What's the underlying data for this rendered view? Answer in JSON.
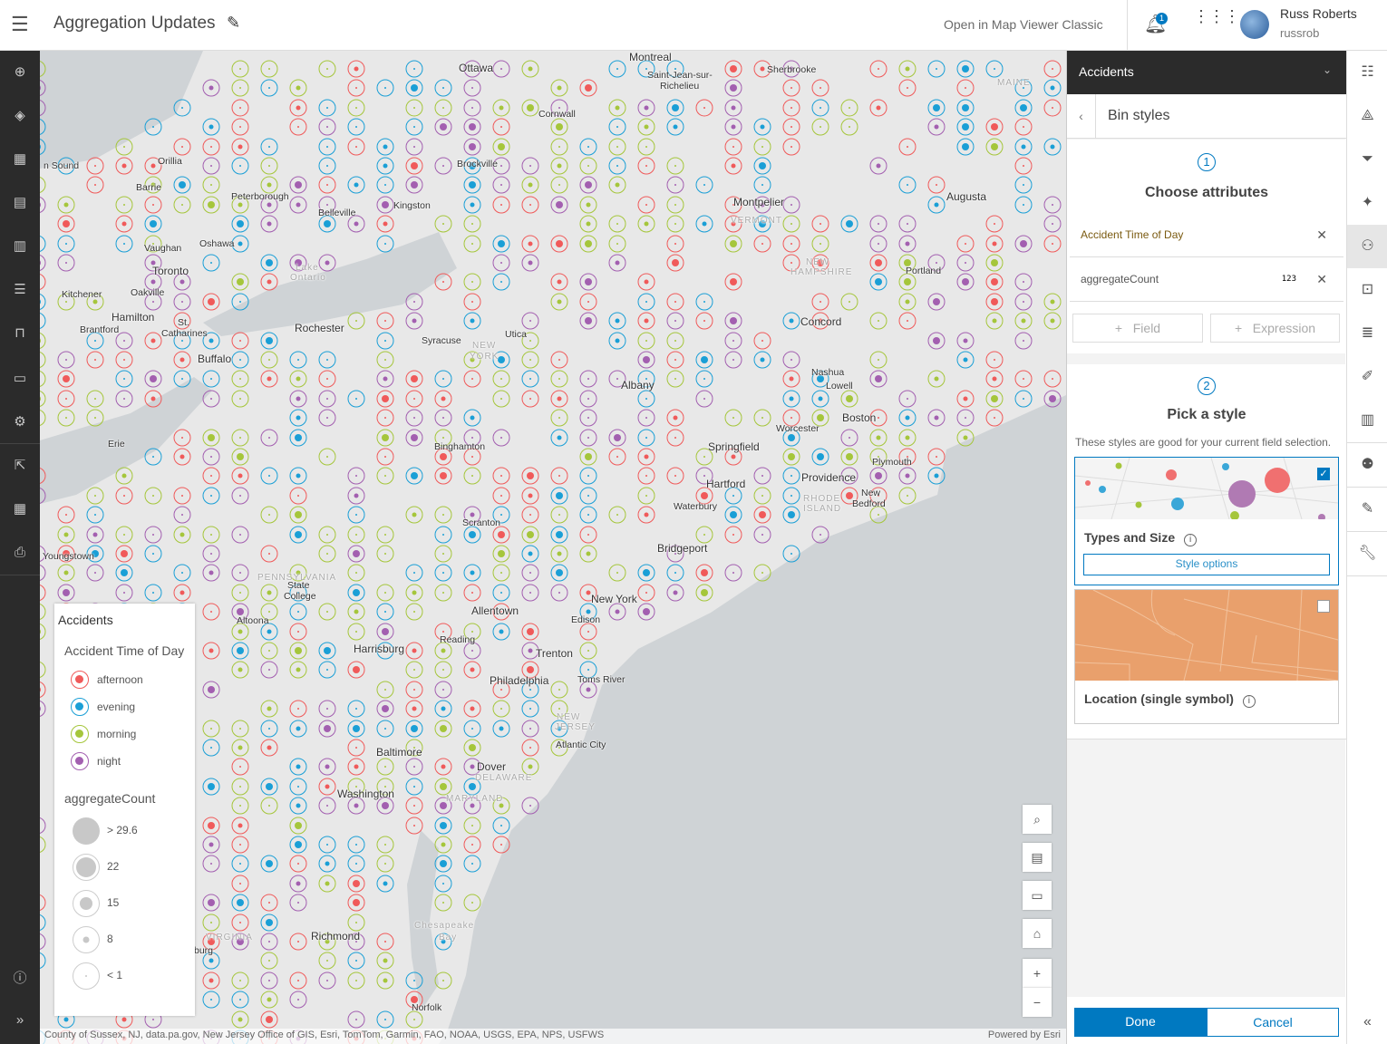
{
  "header": {
    "title": "Aggregation Updates",
    "classic_link": "Open in Map Viewer Classic",
    "notification_count": "1",
    "user_name": "Russ Roberts",
    "user_id": "russrob"
  },
  "left_nav": {
    "icons": [
      "add-icon",
      "layers-icon",
      "table-icon",
      "basemap-icon",
      "charts-icon",
      "legend-icon",
      "bookmarks-icon",
      "media-icon",
      "settings-icon",
      "share-icon",
      "apps-icon",
      "print-icon",
      "info-icon",
      "expand-icon"
    ]
  },
  "map": {
    "labels": [
      {
        "t": "Ottawa",
        "c": "big"
      },
      {
        "t": "Montreal",
        "c": "big"
      },
      {
        "t": "Saint-Jean-sur-",
        "c": ""
      },
      {
        "t": "Richelieu",
        "c": ""
      },
      {
        "t": "Sherbrooke",
        "c": ""
      },
      {
        "t": "MAINE",
        "c": "st"
      },
      {
        "t": "Cornwall",
        "c": ""
      },
      {
        "t": "Orillia",
        "c": ""
      },
      {
        "t": "n Sound",
        "c": ""
      },
      {
        "t": "Barrie",
        "c": ""
      },
      {
        "t": "Brockville",
        "c": ""
      },
      {
        "t": "Peterborough",
        "c": ""
      },
      {
        "t": "Belleville",
        "c": ""
      },
      {
        "t": "Kingston",
        "c": ""
      },
      {
        "t": "Montpelier",
        "c": "big"
      },
      {
        "t": "VERMONT",
        "c": "st"
      },
      {
        "t": "Augusta",
        "c": "big"
      },
      {
        "t": "Vaughan",
        "c": ""
      },
      {
        "t": "Oshawa",
        "c": ""
      },
      {
        "t": "Toronto",
        "c": "big"
      },
      {
        "t": "Lake",
        "c": "st"
      },
      {
        "t": "Ontario",
        "c": "st"
      },
      {
        "t": "NEW",
        "c": "st"
      },
      {
        "t": "HAMPSHIRE",
        "c": "st"
      },
      {
        "t": "Portland",
        "c": ""
      },
      {
        "t": "Kitchener",
        "c": ""
      },
      {
        "t": "Oakville",
        "c": ""
      },
      {
        "t": "Hamilton",
        "c": "big"
      },
      {
        "t": "St.",
        "c": ""
      },
      {
        "t": "Catharines",
        "c": ""
      },
      {
        "t": "Brantford",
        "c": ""
      },
      {
        "t": "Rochester",
        "c": "big"
      },
      {
        "t": "Syracuse",
        "c": ""
      },
      {
        "t": "Utica",
        "c": ""
      },
      {
        "t": "NEW",
        "c": "st"
      },
      {
        "t": "YORK",
        "c": "st"
      },
      {
        "t": "Concord",
        "c": "big"
      },
      {
        "t": "Buffalo",
        "c": "big"
      },
      {
        "t": "Nashua",
        "c": ""
      },
      {
        "t": "Lowell",
        "c": ""
      },
      {
        "t": "Albany",
        "c": "big"
      },
      {
        "t": "Boston",
        "c": "big"
      },
      {
        "t": "Worcester",
        "c": ""
      },
      {
        "t": "Erie",
        "c": ""
      },
      {
        "t": "Binghamton",
        "c": ""
      },
      {
        "t": "Springfield",
        "c": "big"
      },
      {
        "t": "Plymouth",
        "c": ""
      },
      {
        "t": "Providence",
        "c": "big"
      },
      {
        "t": "Hartford",
        "c": "big"
      },
      {
        "t": "RHODE",
        "c": "st"
      },
      {
        "t": "ISLAND",
        "c": "st"
      },
      {
        "t": "New",
        "c": ""
      },
      {
        "t": "Bedford",
        "c": ""
      },
      {
        "t": "Waterbury",
        "c": ""
      },
      {
        "t": "Scranton",
        "c": ""
      },
      {
        "t": "Youngstown",
        "c": ""
      },
      {
        "t": "Bridgeport",
        "c": "big"
      },
      {
        "t": "PENNSYLVANIA",
        "c": "st"
      },
      {
        "t": "State",
        "c": ""
      },
      {
        "t": "College",
        "c": ""
      },
      {
        "t": "New York",
        "c": "big"
      },
      {
        "t": "Allentown",
        "c": "big"
      },
      {
        "t": "Edison",
        "c": ""
      },
      {
        "t": "Altoona",
        "c": ""
      },
      {
        "t": "Harrisburg",
        "c": "big"
      },
      {
        "t": "Reading",
        "c": ""
      },
      {
        "t": "Trenton",
        "c": "big"
      },
      {
        "t": "Philadelphia",
        "c": "big"
      },
      {
        "t": "Toms River",
        "c": ""
      },
      {
        "t": "NEW",
        "c": "st"
      },
      {
        "t": "JERSEY",
        "c": "st"
      },
      {
        "t": "Atlantic City",
        "c": ""
      },
      {
        "t": "Baltimore",
        "c": "big"
      },
      {
        "t": "Dover",
        "c": "big"
      },
      {
        "t": "DELAWARE",
        "c": "st"
      },
      {
        "t": "Washington",
        "c": "big"
      },
      {
        "t": "MARYLAND",
        "c": "st"
      },
      {
        "t": "VIRGINIA",
        "c": "st"
      },
      {
        "t": "Richmond",
        "c": "big"
      },
      {
        "t": "Chesapeake",
        "c": "st"
      },
      {
        "t": "Bay",
        "c": "st"
      },
      {
        "t": "Norfolk",
        "c": ""
      },
      {
        "t": "burg",
        "c": ""
      }
    ],
    "attribution": "County of Sussex, NJ, data.pa.gov, New Jersey Office of GIS, Esri, TomTom, Garmin, FAO, NOAA, USGS, EPA, NPS, USFWS",
    "powered_by": "Powered by Esri",
    "colors": {
      "afternoon": "#f05a5a",
      "evening": "#1a9fd6",
      "morning": "#a5c63b",
      "night": "#a35fb0"
    }
  },
  "legend": {
    "layer": "Accidents",
    "field1": "Accident Time of Day",
    "categories": [
      {
        "label": "afternoon",
        "color": "#f05a5a"
      },
      {
        "label": "evening",
        "color": "#1a9fd6"
      },
      {
        "label": "morning",
        "color": "#a5c63b"
      },
      {
        "label": "night",
        "color": "#a35fb0"
      }
    ],
    "field2": "aggregateCount",
    "sizes": [
      {
        "label": "> 29.6"
      },
      {
        "label": "22"
      },
      {
        "label": "15"
      },
      {
        "label": "8"
      },
      {
        "label": "< 1"
      }
    ]
  },
  "panel": {
    "layer": "Accidents",
    "subtitle": "Bin styles",
    "step1": "1",
    "step1_title": "Choose attributes",
    "fields": [
      {
        "name": "Accident Time of Day",
        "type": ""
      },
      {
        "name": "aggregateCount",
        "type": "123"
      }
    ],
    "add_field": "Field",
    "add_expression": "Expression",
    "step2": "2",
    "step2_title": "Pick a style",
    "hint": "These styles are good for your current field selection.",
    "styles": [
      {
        "name": "Types and Size",
        "selected": true,
        "options": "Style options"
      },
      {
        "name": "Location (single symbol)",
        "selected": false
      }
    ],
    "done": "Done",
    "cancel": "Cancel"
  },
  "right_bar": {
    "icons": [
      "properties-icon",
      "styles-icon",
      "filter-icon",
      "effects-icon",
      "aggregation-icon",
      "popups-icon",
      "labels-icon",
      "fields-icon",
      "configure-charts-icon",
      "clustering-icon",
      "sketch-icon",
      "wrench-icon",
      "collapse-icon"
    ]
  }
}
